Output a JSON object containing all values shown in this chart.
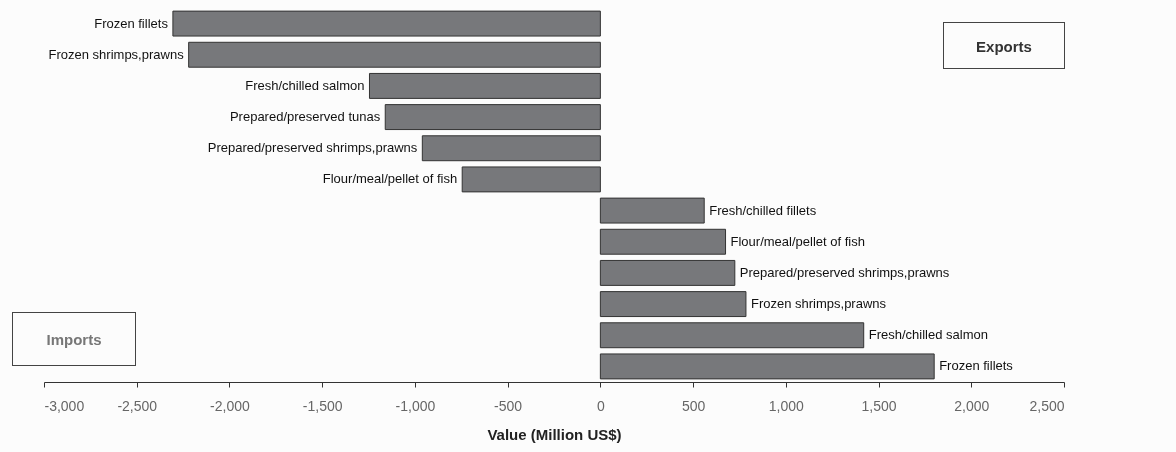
{
  "chart_data": {
    "type": "bar",
    "orientation": "horizontal",
    "categories": [
      "Frozen fillets",
      "Frozen shrimps,prawns",
      "Fresh/chilled salmon",
      "Prepared/preserved tunas",
      "Prepared/preserved shrimps,prawns",
      "Flour/meal/pellet of fish",
      "Fresh/chilled fillets",
      "Flour/meal/pellet of fish",
      "Prepared/preserved shrimps,prawns",
      "Frozen shrimps,prawns",
      "Fresh/chilled salmon",
      "Frozen fillets"
    ],
    "values": [
      -2305,
      -2220,
      -1245,
      -1160,
      -960,
      -745,
      560,
      675,
      725,
      785,
      1420,
      1800
    ],
    "color": "#77787b",
    "xlabel": "Value (Million US$)",
    "xlim": [
      -3000,
      2500
    ],
    "xticks": [
      {
        "value": -3000,
        "label": "-3,000"
      },
      {
        "value": -2500,
        "label": "-2,500"
      },
      {
        "value": -2000,
        "label": "-2,000"
      },
      {
        "value": -1500,
        "label": "-1,500"
      },
      {
        "value": -1000,
        "label": "-1,000"
      },
      -500,
      0,
      500,
      {
        "value": 1000,
        "label": "1,000"
      },
      {
        "value": 1500,
        "label": "1,500"
      },
      {
        "value": 2000,
        "label": "2,000"
      },
      {
        "value": 2500,
        "label": "2,500"
      }
    ],
    "annotations": [
      "Exports",
      "Imports"
    ]
  }
}
